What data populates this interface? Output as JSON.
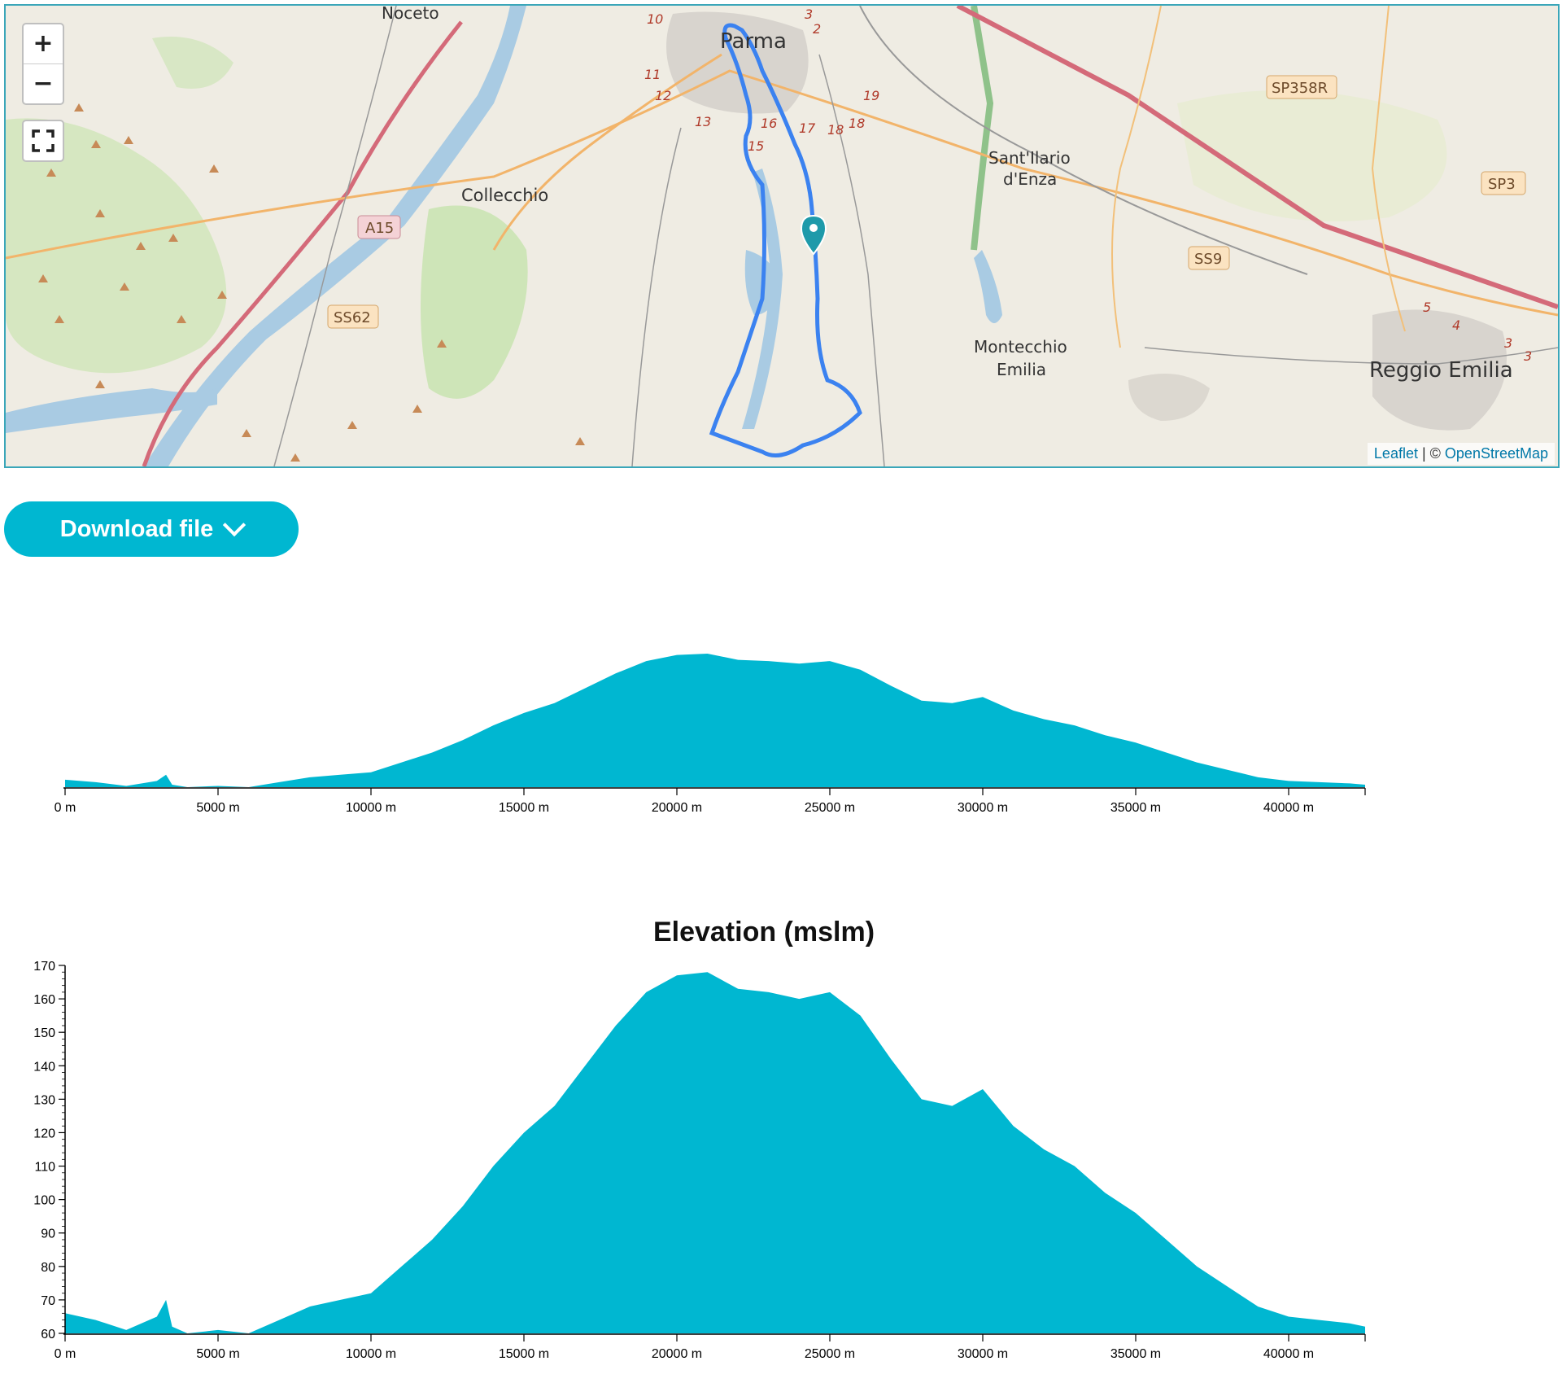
{
  "map": {
    "labels": {
      "noceto": "Noceto",
      "parma": "Parma",
      "collecchio": "Collecchio",
      "sant_ilario_1": "Sant'Ilario",
      "sant_ilario_2": "d'Enza",
      "montecchio_1": "Montecchio",
      "montecchio_2": "Emilia",
      "reggio": "Reggio Emilia"
    },
    "road_shields": {
      "a15": "A15",
      "ss62": "SS62",
      "sp358r": "SP358R",
      "sp3": "SP3",
      "ss9": "SS9"
    },
    "route_numbers": [
      "10",
      "3",
      "2",
      "11",
      "12",
      "13",
      "16",
      "17",
      "18",
      "18",
      "19",
      "15",
      "5",
      "4",
      "3",
      "3"
    ],
    "controls": {
      "zoom_in": "+",
      "zoom_out": "−"
    },
    "attribution": {
      "leaflet": "Leaflet",
      "separator": " | © ",
      "osm": "OpenStreetMap"
    },
    "colors": {
      "route": "#3b82f0",
      "marker": "#1e9aaa",
      "water": "#a9cbe3",
      "land": "#efece3"
    }
  },
  "download": {
    "label": "Download file",
    "icon": "chevron-down-icon"
  },
  "chart_data": [
    {
      "type": "area",
      "title": "",
      "xlabel": "",
      "ylabel": "",
      "x_unit": "m",
      "xlim": [
        0,
        42500
      ],
      "ylim": [
        60,
        170
      ],
      "x_ticks": [
        "0 m",
        "5000 m",
        "10000 m",
        "15000 m",
        "20000 m",
        "25000 m",
        "30000 m",
        "35000 m",
        "40000 m"
      ],
      "y_ticks": [],
      "grid": false,
      "color": "#00b7d1",
      "x": [
        0,
        1000,
        2000,
        3000,
        3300,
        3500,
        4000,
        5000,
        6000,
        7000,
        8000,
        9000,
        10000,
        11000,
        12000,
        13000,
        14000,
        15000,
        16000,
        17000,
        18000,
        19000,
        20000,
        21000,
        22000,
        23000,
        24000,
        25000,
        26000,
        27000,
        28000,
        29000,
        30000,
        31000,
        32000,
        33000,
        34000,
        35000,
        36000,
        37000,
        38000,
        39000,
        40000,
        41000,
        42000,
        42500
      ],
      "y": [
        66,
        64,
        61,
        65,
        70,
        62,
        60,
        61,
        60,
        64,
        68,
        70,
        72,
        80,
        88,
        98,
        110,
        120,
        128,
        140,
        152,
        162,
        167,
        168,
        163,
        162,
        160,
        162,
        155,
        142,
        130,
        128,
        133,
        122,
        115,
        110,
        102,
        96,
        88,
        80,
        74,
        68,
        65,
        64,
        63,
        62
      ]
    },
    {
      "type": "area",
      "title": "Elevation (mslm)",
      "xlabel": "",
      "ylabel": "",
      "x_unit": "m",
      "xlim": [
        0,
        42500
      ],
      "ylim": [
        60,
        170
      ],
      "x_ticks": [
        "0 m",
        "5000 m",
        "10000 m",
        "15000 m",
        "20000 m",
        "25000 m",
        "30000 m",
        "35000 m",
        "40000 m"
      ],
      "y_ticks": [
        "60",
        "70",
        "80",
        "90",
        "100",
        "110",
        "120",
        "130",
        "140",
        "150",
        "160",
        "170"
      ],
      "grid": false,
      "color": "#00b7d1",
      "x": [
        0,
        1000,
        2000,
        3000,
        3300,
        3500,
        4000,
        5000,
        6000,
        7000,
        8000,
        9000,
        10000,
        11000,
        12000,
        13000,
        14000,
        15000,
        16000,
        17000,
        18000,
        19000,
        20000,
        21000,
        22000,
        23000,
        24000,
        25000,
        26000,
        27000,
        28000,
        29000,
        30000,
        31000,
        32000,
        33000,
        34000,
        35000,
        36000,
        37000,
        38000,
        39000,
        40000,
        41000,
        42000,
        42500
      ],
      "y": [
        66,
        64,
        61,
        65,
        70,
        62,
        60,
        61,
        60,
        64,
        68,
        70,
        72,
        80,
        88,
        98,
        110,
        120,
        128,
        140,
        152,
        162,
        167,
        168,
        163,
        162,
        160,
        162,
        155,
        142,
        130,
        128,
        133,
        122,
        115,
        110,
        102,
        96,
        88,
        80,
        74,
        68,
        65,
        64,
        63,
        62
      ]
    }
  ]
}
